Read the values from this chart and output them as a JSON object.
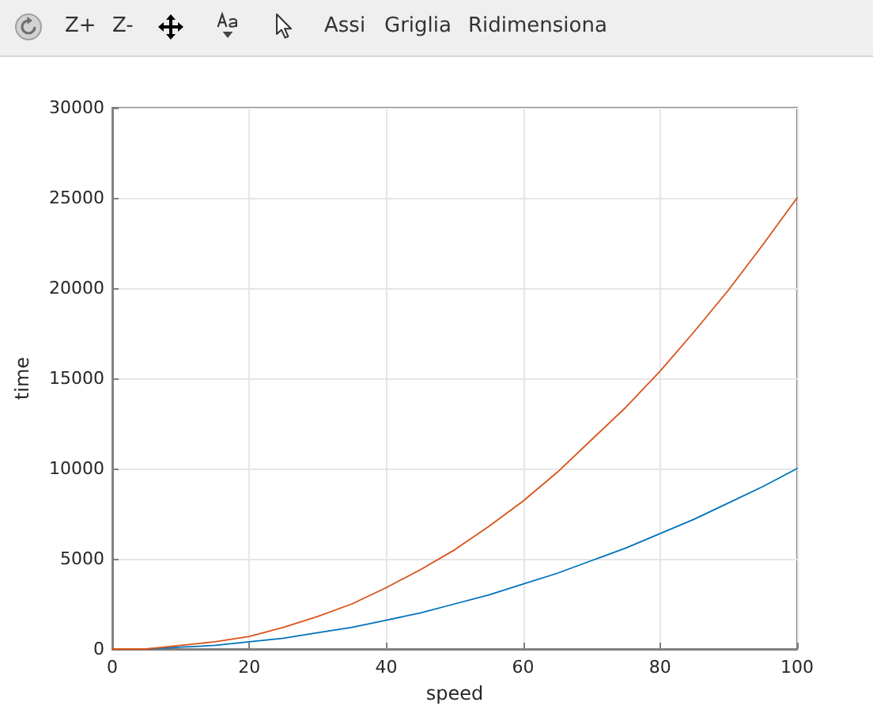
{
  "chart_data": {
    "type": "line",
    "xlabel": "speed",
    "ylabel": "time",
    "x": [
      0,
      5,
      10,
      15,
      20,
      25,
      30,
      35,
      40,
      45,
      50,
      55,
      60,
      65,
      70,
      75,
      80,
      85,
      90,
      95,
      100
    ],
    "series": [
      {
        "color": "#0072bd",
        "values": [
          0,
          0,
          100,
          200,
          400,
          600,
          900,
          1200,
          1600,
          2000,
          2500,
          3000,
          3600,
          4200,
          4900,
          5600,
          6400,
          7200,
          8100,
          9000,
          10000
        ]
      },
      {
        "color": "#d95319",
        "values": [
          0,
          0,
          200,
          400,
          700,
          1200,
          1800,
          2500,
          3400,
          4400,
          5500,
          6800,
          8200,
          9800,
          11600,
          13400,
          15400,
          17600,
          19900,
          22400,
          25000
        ]
      }
    ],
    "xlim": [
      0,
      100
    ],
    "xticks": [
      0,
      20,
      40,
      60,
      80,
      100
    ],
    "ylim": [
      0,
      30000
    ],
    "yticks": [
      0,
      5000,
      10000,
      15000,
      20000,
      25000,
      30000
    ],
    "grid": true,
    "marker": "none",
    "line_style": "solid",
    "annotations": [
      "Z+",
      "Z-",
      "Assi",
      "Griglia",
      "Ridimensiona"
    ]
  }
}
